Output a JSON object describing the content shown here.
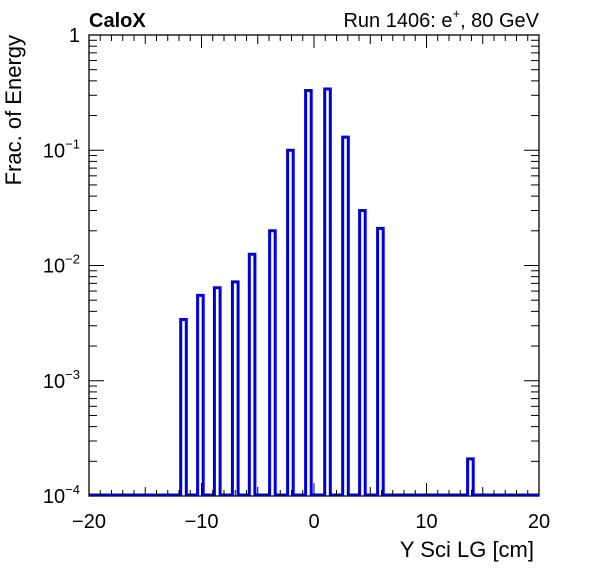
{
  "header": {
    "experiment": "CaloX",
    "run_label": "Run 1406: e",
    "run_sup": "+",
    "run_suffix": ", 80 GeV"
  },
  "colors": {
    "series": "#0000dd",
    "frame": "#000000"
  },
  "chart_data": {
    "type": "bar",
    "title": "",
    "xlabel": "Y Sci LG [cm]",
    "ylabel": "Frac. of Energy",
    "xlim": [
      -20,
      20
    ],
    "ylim": [
      0.0001,
      1
    ],
    "log_y": true,
    "grid": false,
    "x_ticks": [
      -20,
      -10,
      0,
      10,
      20
    ],
    "x_tick_labels": [
      "−20",
      "−10",
      "0",
      "10",
      "20"
    ],
    "y_ticks": [
      {
        "value": 1,
        "base": "1",
        "exp": ""
      },
      {
        "value": 0.1,
        "base": "10",
        "exp": "−1"
      },
      {
        "value": 0.01,
        "base": "10",
        "exp": "−2"
      },
      {
        "value": 0.001,
        "base": "10",
        "exp": "−3"
      },
      {
        "value": 0.0001,
        "base": "10",
        "exp": "−4"
      }
    ],
    "bars": [
      {
        "x": -11.6,
        "y": 0.0034
      },
      {
        "x": -10.1,
        "y": 0.0055
      },
      {
        "x": -8.6,
        "y": 0.0064
      },
      {
        "x": -7.0,
        "y": 0.0072
      },
      {
        "x": -5.5,
        "y": 0.0125
      },
      {
        "x": -3.7,
        "y": 0.02
      },
      {
        "x": -2.1,
        "y": 0.1
      },
      {
        "x": -0.5,
        "y": 0.33
      },
      {
        "x": 1.2,
        "y": 0.34
      },
      {
        "x": 2.8,
        "y": 0.13
      },
      {
        "x": 4.3,
        "y": 0.03
      },
      {
        "x": 5.9,
        "y": 0.021
      },
      {
        "x": 13.9,
        "y": 0.00021
      }
    ]
  }
}
